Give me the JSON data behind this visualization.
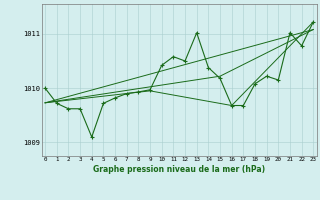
{
  "title": "Graphe pression niveau de la mer (hPa)",
  "x_values": [
    0,
    1,
    2,
    3,
    4,
    5,
    6,
    7,
    8,
    9,
    10,
    11,
    12,
    13,
    14,
    15,
    16,
    17,
    18,
    19,
    20,
    21,
    22,
    23
  ],
  "x_labels": [
    "0",
    "1",
    "2",
    "3",
    "4",
    "5",
    "6",
    "7",
    "8",
    "9",
    "10",
    "11",
    "12",
    "13",
    "14",
    "15",
    "16",
    "17",
    "18",
    "19",
    "20",
    "21",
    "22",
    "23"
  ],
  "main_y": [
    1010.0,
    1009.72,
    1009.62,
    1009.62,
    1009.1,
    1009.72,
    1009.82,
    1009.9,
    1009.93,
    1009.97,
    1010.42,
    1010.58,
    1010.5,
    1011.02,
    1010.38,
    1010.18,
    1009.68,
    1009.68,
    1010.08,
    1010.22,
    1010.15,
    1011.02,
    1010.78,
    1011.22
  ],
  "trend1_x": [
    0,
    23
  ],
  "trend1_y": [
    1009.73,
    1011.08
  ],
  "trend2_x": [
    0,
    15,
    23
  ],
  "trend2_y": [
    1009.73,
    1010.22,
    1011.08
  ],
  "trend3_x": [
    0,
    9,
    16,
    23
  ],
  "trend3_y": [
    1009.73,
    1009.95,
    1009.68,
    1011.22
  ],
  "ylim_min": 1008.75,
  "ylim_max": 1011.55,
  "yticks": [
    1009,
    1010,
    1011
  ],
  "xlim_min": -0.3,
  "xlim_max": 23.3,
  "line_color": "#1a6b1a",
  "bg_color": "#d4eeee",
  "grid_color": "#aacece",
  "title_color": "#1a6b1a"
}
